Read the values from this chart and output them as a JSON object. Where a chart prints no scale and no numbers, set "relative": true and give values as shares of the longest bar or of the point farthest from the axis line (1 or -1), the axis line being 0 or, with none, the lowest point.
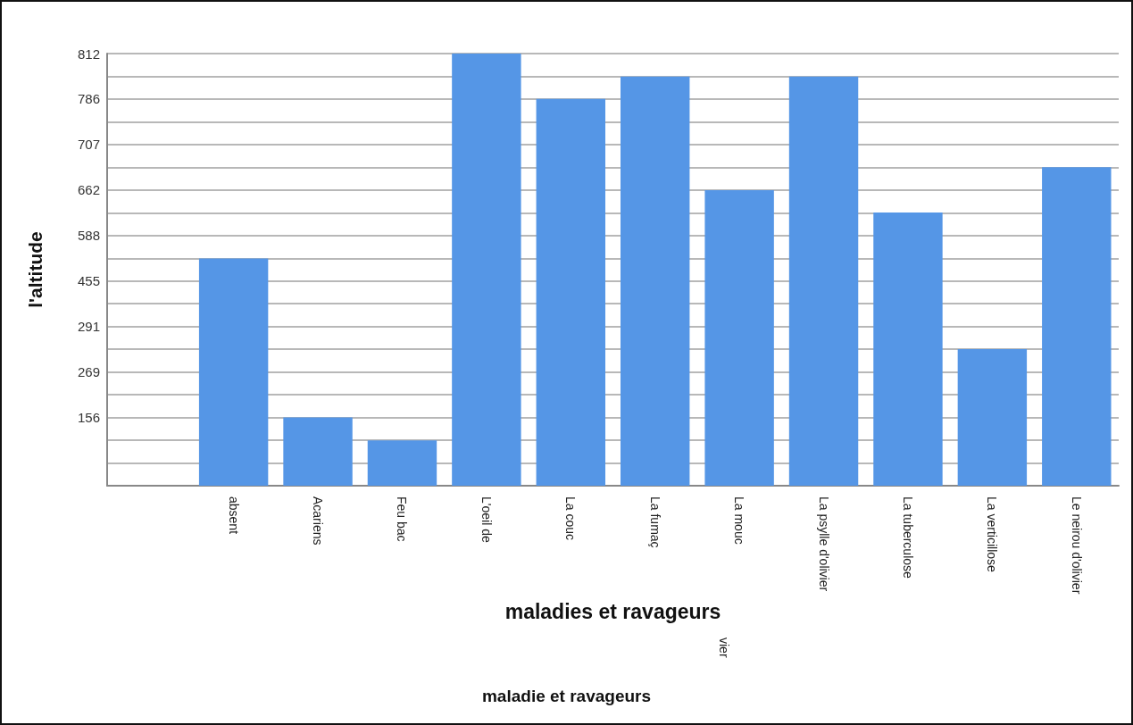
{
  "chart_data": {
    "type": "bar",
    "xlabel": "maladies et ravageurs",
    "ylabel": "l'altitude",
    "annotations": [
      "vier",
      "maladie et ravageurs"
    ],
    "categories": [
      null,
      "absent",
      "Acariens",
      "Feu bac",
      "L'oeil de",
      "La couc",
      "La fumaç",
      "La mouc",
      "La psylle d'olivier",
      "La tuberculose",
      "La verticillose",
      "Le neirou d'olivier"
    ],
    "y_categories": [
      "812",
      null,
      "786",
      null,
      "707",
      null,
      "662",
      null,
      "588",
      null,
      "455",
      null,
      "291",
      null,
      "269",
      null,
      "156",
      null,
      null,
      null
    ],
    "relative": true,
    "values": [
      null,
      0.526,
      0.158,
      0.105,
      1,
      0.895,
      0.947,
      0.684,
      0.947,
      0.632,
      0.316,
      0.737
    ],
    "color": "#5596e6",
    "grid": "y"
  }
}
